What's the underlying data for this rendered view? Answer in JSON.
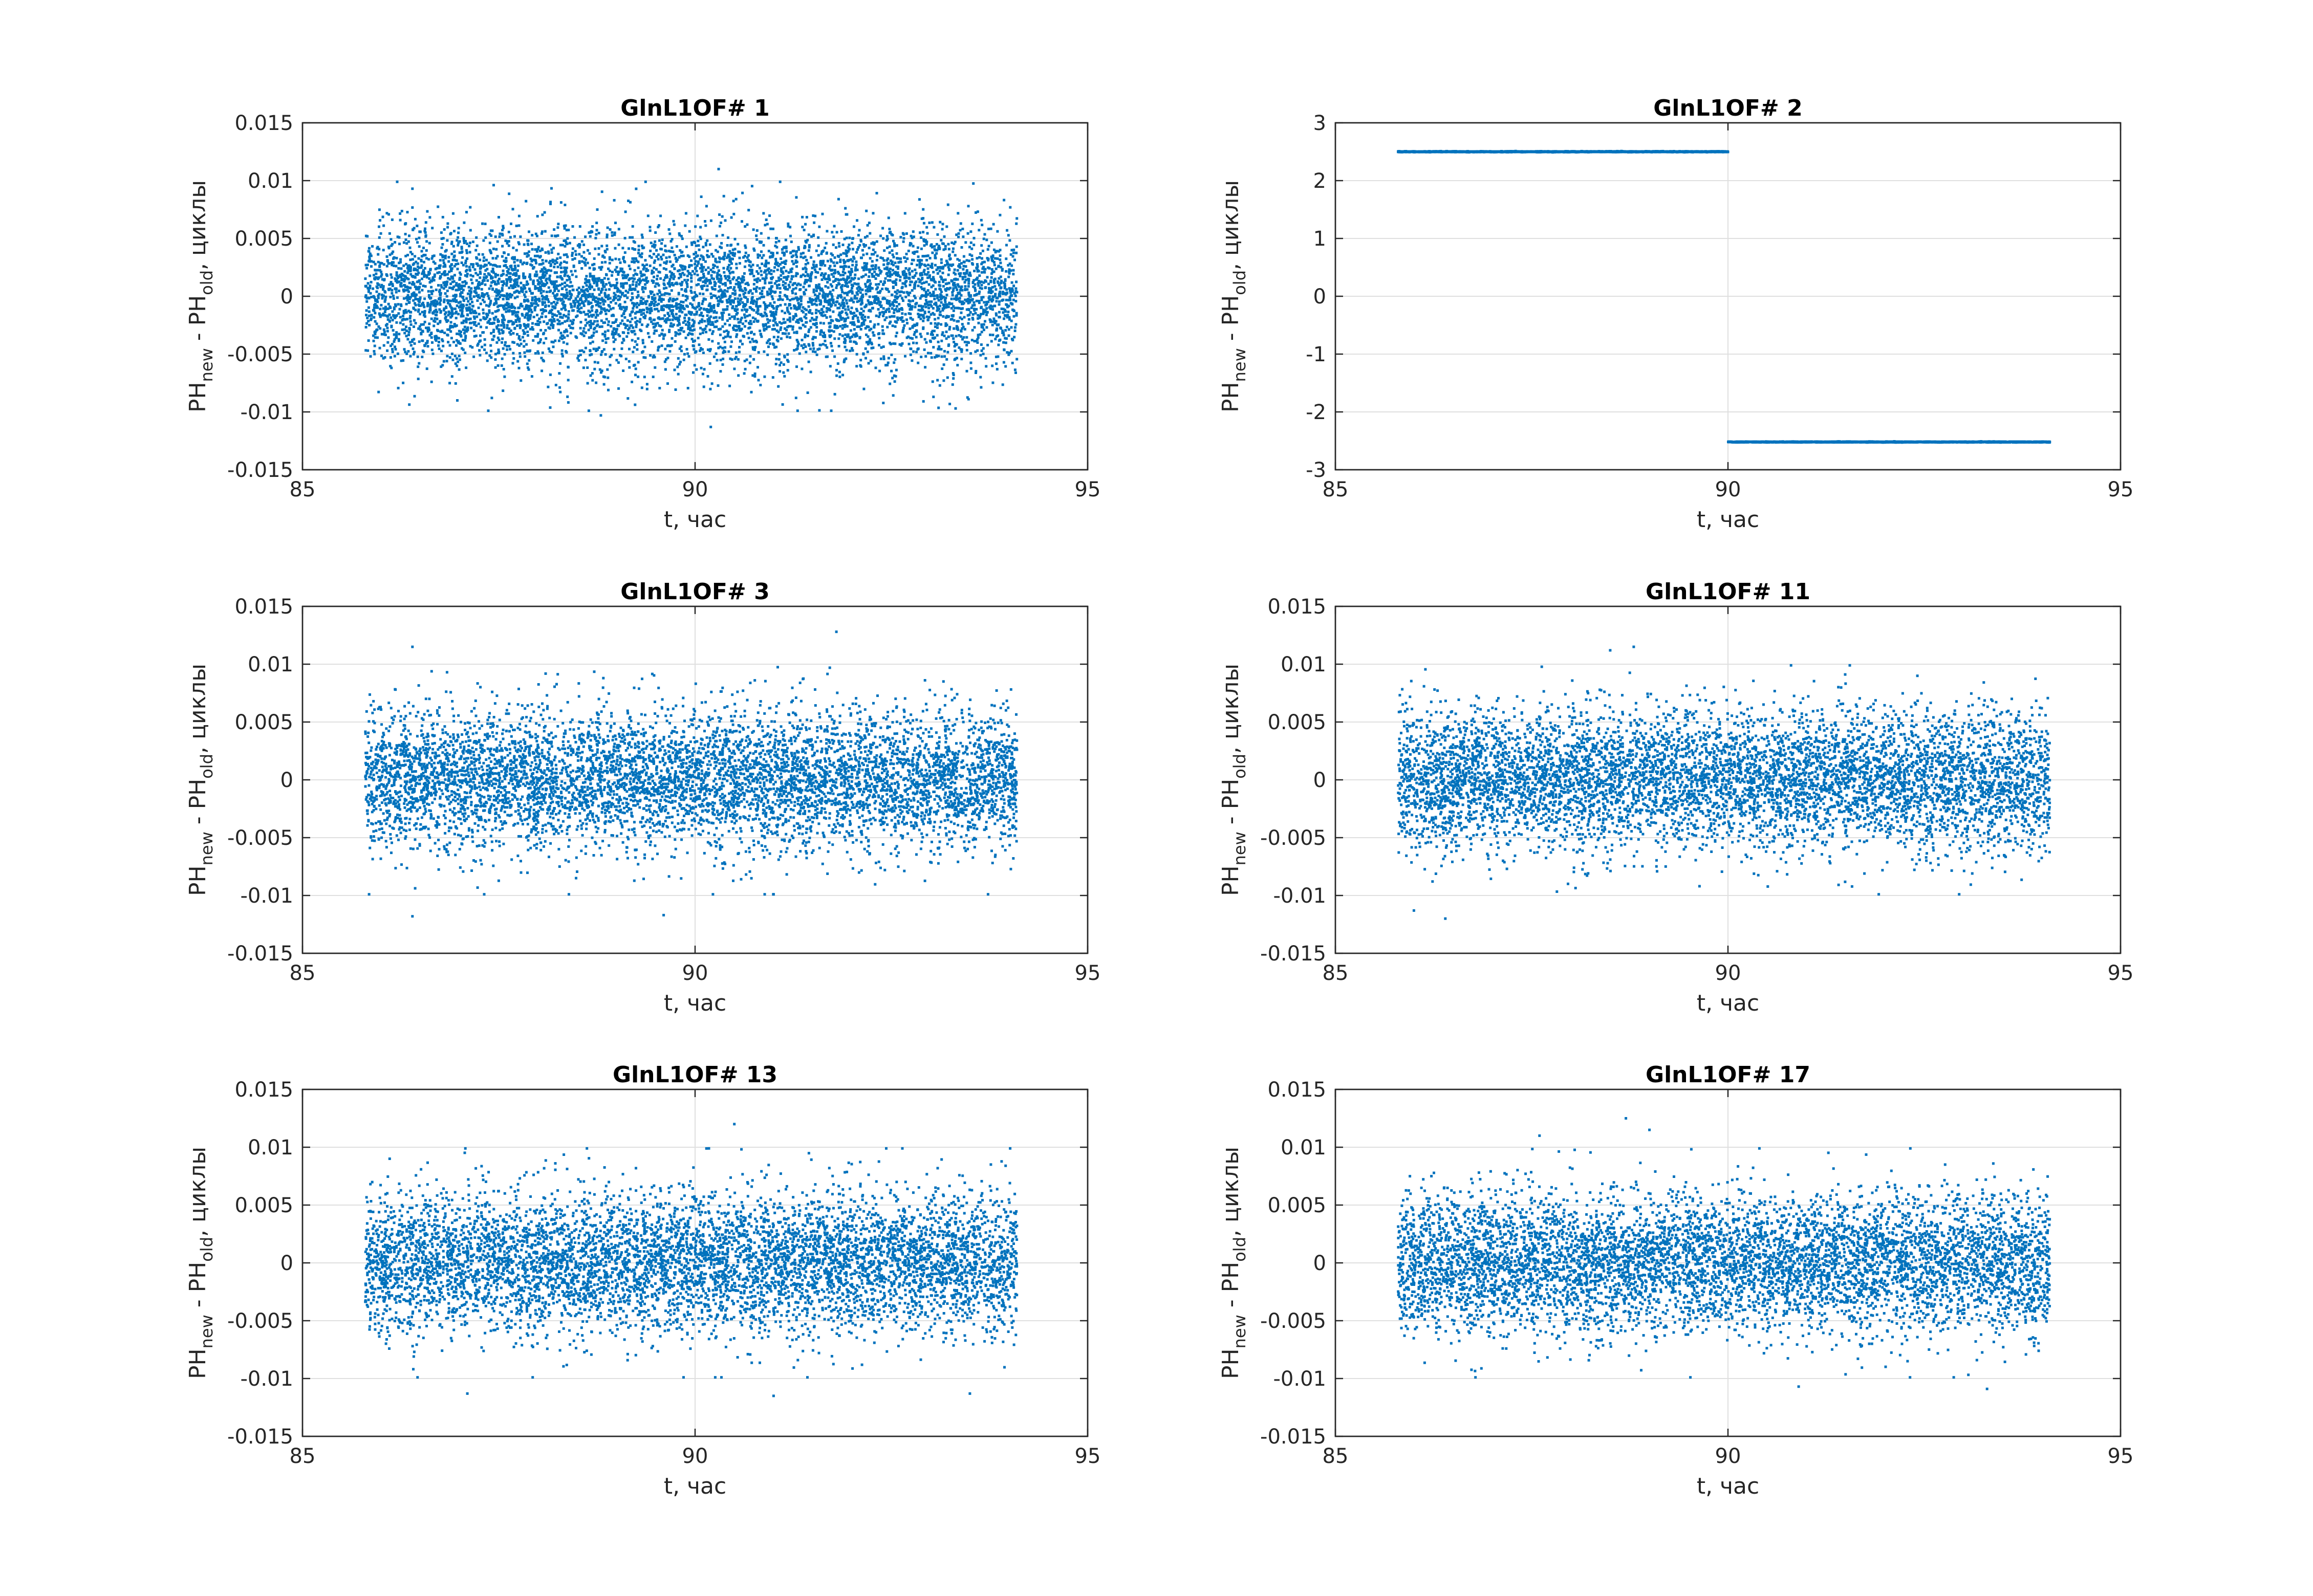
{
  "figure": {
    "accent_color": "#0072bd",
    "background_color": "#ffffff"
  },
  "chart_data": [
    {
      "type": "scatter",
      "title": "GlnL1OF# 1",
      "xlabel": "t, час",
      "ylabel": {
        "base1": "PH",
        "sub1": "new",
        "mid": " - PH",
        "sub2": "old",
        "tail": ", циклы"
      },
      "xlim": [
        85,
        95
      ],
      "ylim": [
        -0.015,
        0.015
      ],
      "xticks": [
        85,
        90,
        95
      ],
      "xtick_labels": [
        "85",
        "90",
        "95"
      ],
      "yticks": [
        -0.015,
        -0.01,
        -0.005,
        0,
        0.005,
        0.01,
        0.015
      ],
      "ytick_labels": [
        "-0.015",
        "-0.01",
        "-0.005",
        "0",
        "0.005",
        "0.01",
        "0.015"
      ],
      "grid": true,
      "series": [
        {
          "name": "GlnL1OF# 1",
          "x_range": [
            85.8,
            94.1
          ],
          "segments": [
            {
              "x_start": 85.8,
              "x_end": 94.1,
              "mean": 0,
              "std": 0.003
            }
          ],
          "outliers": [
            [
              90.3,
              0.011
            ],
            [
              90.2,
              -0.0113
            ],
            [
              86.4,
              0.0093
            ],
            [
              88.8,
              -0.0103
            ]
          ]
        }
      ]
    },
    {
      "type": "scatter",
      "title": "GlnL1OF# 2",
      "xlabel": "t, час",
      "ylabel": {
        "base1": "PH",
        "sub1": "new",
        "mid": " - PH",
        "sub2": "old",
        "tail": ", циклы"
      },
      "xlim": [
        85,
        95
      ],
      "ylim": [
        -3,
        3
      ],
      "xticks": [
        85,
        90,
        95
      ],
      "xtick_labels": [
        "85",
        "90",
        "95"
      ],
      "yticks": [
        -3,
        -2,
        -1,
        0,
        1,
        2,
        3
      ],
      "ytick_labels": [
        "-3",
        "-2",
        "-1",
        "0",
        "1",
        "2",
        "3"
      ],
      "grid": true,
      "series": [
        {
          "name": "GlnL1OF# 2",
          "x_range": [
            85.8,
            94.1
          ],
          "segments": [
            {
              "x_start": 85.8,
              "x_end": 90.0,
              "mean": 2.5,
              "std": 0.003
            },
            {
              "x_start": 90.0,
              "x_end": 94.1,
              "mean": -2.52,
              "std": 0.003
            }
          ],
          "outliers": []
        }
      ]
    },
    {
      "type": "scatter",
      "title": "GlnL1OF# 3",
      "xlabel": "t, час",
      "ylabel": {
        "base1": "PH",
        "sub1": "new",
        "mid": " - PH",
        "sub2": "old",
        "tail": ", циклы"
      },
      "xlim": [
        85,
        95
      ],
      "ylim": [
        -0.015,
        0.015
      ],
      "xticks": [
        85,
        90,
        95
      ],
      "xtick_labels": [
        "85",
        "90",
        "95"
      ],
      "yticks": [
        -0.015,
        -0.01,
        -0.005,
        0,
        0.005,
        0.01,
        0.015
      ],
      "ytick_labels": [
        "-0.015",
        "-0.01",
        "-0.005",
        "0",
        "0.005",
        "0.01",
        "0.015"
      ],
      "grid": true,
      "series": [
        {
          "name": "GlnL1OF# 3",
          "x_range": [
            85.8,
            94.1
          ],
          "segments": [
            {
              "x_start": 85.8,
              "x_end": 94.1,
              "mean": 0,
              "std": 0.003
            }
          ],
          "outliers": [
            [
              91.8,
              0.0128
            ],
            [
              86.4,
              0.0115
            ],
            [
              86.4,
              -0.0118
            ],
            [
              89.6,
              -0.0117
            ]
          ]
        }
      ]
    },
    {
      "type": "scatter",
      "title": "GlnL1OF# 11",
      "xlabel": "t, час",
      "ylabel": {
        "base1": "PH",
        "sub1": "new",
        "mid": " - PH",
        "sub2": "old",
        "tail": ", циклы"
      },
      "xlim": [
        85,
        95
      ],
      "ylim": [
        -0.015,
        0.015
      ],
      "xticks": [
        85,
        90,
        95
      ],
      "xtick_labels": [
        "85",
        "90",
        "95"
      ],
      "yticks": [
        -0.015,
        -0.01,
        -0.005,
        0,
        0.005,
        0.01,
        0.015
      ],
      "ytick_labels": [
        "-0.015",
        "-0.01",
        "-0.005",
        "0",
        "0.005",
        "0.01",
        "0.015"
      ],
      "grid": true,
      "series": [
        {
          "name": "GlnL1OF# 11",
          "x_range": [
            85.8,
            94.1
          ],
          "segments": [
            {
              "x_start": 85.8,
              "x_end": 94.1,
              "mean": 0,
              "std": 0.003
            }
          ],
          "outliers": [
            [
              88.8,
              0.0115
            ],
            [
              88.5,
              0.0112
            ],
            [
              86.0,
              -0.0113
            ],
            [
              86.4,
              -0.012
            ]
          ]
        }
      ]
    },
    {
      "type": "scatter",
      "title": "GlnL1OF# 13",
      "xlabel": "t, час",
      "ylabel": {
        "base1": "PH",
        "sub1": "new",
        "mid": " - PH",
        "sub2": "old",
        "tail": ", циклы"
      },
      "xlim": [
        85,
        95
      ],
      "ylim": [
        -0.015,
        0.015
      ],
      "xticks": [
        85,
        90,
        95
      ],
      "xtick_labels": [
        "85",
        "90",
        "95"
      ],
      "yticks": [
        -0.015,
        -0.01,
        -0.005,
        0,
        0.005,
        0.01,
        0.015
      ],
      "ytick_labels": [
        "-0.015",
        "-0.01",
        "-0.005",
        "0",
        "0.005",
        "0.01",
        "0.015"
      ],
      "grid": true,
      "series": [
        {
          "name": "GlnL1OF# 13",
          "x_range": [
            85.8,
            94.1
          ],
          "segments": [
            {
              "x_start": 85.8,
              "x_end": 94.1,
              "mean": 0,
              "std": 0.003
            }
          ],
          "outliers": [
            [
              90.5,
              0.012
            ],
            [
              87.1,
              -0.0113
            ],
            [
              91.0,
              -0.0115
            ],
            [
              93.5,
              -0.0113
            ]
          ]
        }
      ]
    },
    {
      "type": "scatter",
      "title": "GlnL1OF# 17",
      "xlabel": "t, час",
      "ylabel": {
        "base1": "PH",
        "sub1": "new",
        "mid": " - PH",
        "sub2": "old",
        "tail": ", циклы"
      },
      "xlim": [
        85,
        95
      ],
      "ylim": [
        -0.015,
        0.015
      ],
      "xticks": [
        85,
        90,
        95
      ],
      "xtick_labels": [
        "85",
        "90",
        "95"
      ],
      "yticks": [
        -0.015,
        -0.01,
        -0.005,
        0,
        0.005,
        0.01,
        0.015
      ],
      "ytick_labels": [
        "-0.015",
        "-0.01",
        "-0.005",
        "0",
        "0.005",
        "0.01",
        "0.015"
      ],
      "grid": true,
      "series": [
        {
          "name": "GlnL1OF# 17",
          "x_range": [
            85.8,
            94.1
          ],
          "segments": [
            {
              "x_start": 85.8,
              "x_end": 94.1,
              "mean": 0,
              "std": 0.003
            }
          ],
          "outliers": [
            [
              88.7,
              0.0125
            ],
            [
              89.0,
              0.0115
            ],
            [
              87.6,
              0.011
            ],
            [
              90.9,
              -0.0107
            ],
            [
              93.3,
              -0.0109
            ]
          ]
        }
      ]
    }
  ]
}
